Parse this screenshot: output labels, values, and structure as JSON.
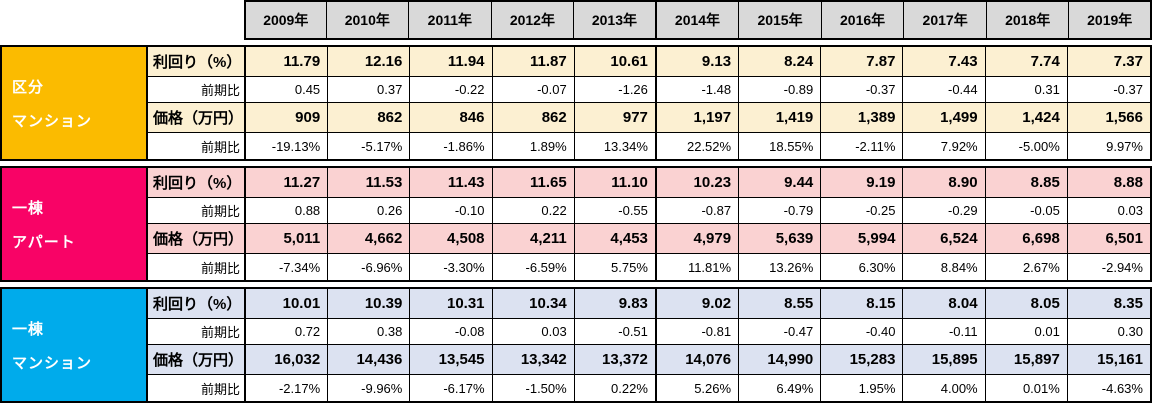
{
  "table": {
    "years": [
      "2009年",
      "2010年",
      "2011年",
      "2012年",
      "2013年",
      "2014年",
      "2015年",
      "2016年",
      "2017年",
      "2018年",
      "2019年"
    ],
    "header_bg": "#d9d9d9",
    "sections": [
      {
        "id": "kubun-mansion",
        "name": "区分マンション",
        "label_lines": [
          "区分",
          "マンション"
        ],
        "color": "#fbbb00",
        "light_color": "#fcf0d2",
        "rows": [
          {
            "key": "yield",
            "label": "利回り（%）",
            "type": "highlight",
            "values": [
              "11.79",
              "12.16",
              "11.94",
              "11.87",
              "10.61",
              "9.13",
              "8.24",
              "7.87",
              "7.43",
              "7.74",
              "7.37"
            ]
          },
          {
            "key": "yield-yoy",
            "label": "前期比",
            "type": "plain",
            "values": [
              "0.45",
              "0.37",
              "-0.22",
              "-0.07",
              "-1.26",
              "-1.48",
              "-0.89",
              "-0.37",
              "-0.44",
              "0.31",
              "-0.37"
            ]
          },
          {
            "key": "price",
            "label": "価格（万円）",
            "type": "highlight",
            "values": [
              "909",
              "862",
              "846",
              "862",
              "977",
              "1,197",
              "1,419",
              "1,389",
              "1,499",
              "1,424",
              "1,566"
            ]
          },
          {
            "key": "price-yoy",
            "label": "前期比",
            "type": "plain",
            "values": [
              "-19.13%",
              "-5.17%",
              "-1.86%",
              "1.89%",
              "13.34%",
              "22.52%",
              "18.55%",
              "-2.11%",
              "7.92%",
              "-5.00%",
              "9.97%"
            ]
          }
        ]
      },
      {
        "id": "itto-apartment",
        "name": "一棟アパート",
        "label_lines": [
          "一棟",
          "アパート"
        ],
        "color": "#f80366",
        "light_color": "#fad2d2",
        "rows": [
          {
            "key": "yield",
            "label": "利回り（%）",
            "type": "highlight",
            "values": [
              "11.27",
              "11.53",
              "11.43",
              "11.65",
              "11.10",
              "10.23",
              "9.44",
              "9.19",
              "8.90",
              "8.85",
              "8.88"
            ]
          },
          {
            "key": "yield-yoy",
            "label": "前期比",
            "type": "plain",
            "values": [
              "0.88",
              "0.26",
              "-0.10",
              "0.22",
              "-0.55",
              "-0.87",
              "-0.79",
              "-0.25",
              "-0.29",
              "-0.05",
              "0.03"
            ]
          },
          {
            "key": "price",
            "label": "価格（万円）",
            "type": "highlight",
            "values": [
              "5,011",
              "4,662",
              "4,508",
              "4,211",
              "4,453",
              "4,979",
              "5,639",
              "5,994",
              "6,524",
              "6,698",
              "6,501"
            ]
          },
          {
            "key": "price-yoy",
            "label": "前期比",
            "type": "plain",
            "values": [
              "-7.34%",
              "-6.96%",
              "-3.30%",
              "-6.59%",
              "5.75%",
              "11.81%",
              "13.26%",
              "6.30%",
              "8.84%",
              "2.67%",
              "-2.94%"
            ]
          }
        ]
      },
      {
        "id": "itto-mansion",
        "name": "一棟マンション",
        "label_lines": [
          "一棟",
          "マンション"
        ],
        "color": "#00abeb",
        "light_color": "#dce2f1",
        "rows": [
          {
            "key": "yield",
            "label": "利回り（%）",
            "type": "highlight",
            "values": [
              "10.01",
              "10.39",
              "10.31",
              "10.34",
              "9.83",
              "9.02",
              "8.55",
              "8.15",
              "8.04",
              "8.05",
              "8.35"
            ]
          },
          {
            "key": "yield-yoy",
            "label": "前期比",
            "type": "plain",
            "values": [
              "0.72",
              "0.38",
              "-0.08",
              "0.03",
              "-0.51",
              "-0.81",
              "-0.47",
              "-0.40",
              "-0.11",
              "0.01",
              "0.30"
            ]
          },
          {
            "key": "price",
            "label": "価格（万円）",
            "type": "highlight",
            "values": [
              "16,032",
              "14,436",
              "13,545",
              "13,342",
              "13,372",
              "14,076",
              "14,990",
              "15,283",
              "15,895",
              "15,897",
              "15,161"
            ]
          },
          {
            "key": "price-yoy",
            "label": "前期比",
            "type": "plain",
            "values": [
              "-2.17%",
              "-9.96%",
              "-6.17%",
              "-1.50%",
              "0.22%",
              "5.26%",
              "6.49%",
              "1.95%",
              "4.00%",
              "0.01%",
              "-4.63%"
            ]
          }
        ]
      }
    ]
  },
  "chart_data": {
    "type": "table",
    "categories": [
      "2009",
      "2010",
      "2011",
      "2012",
      "2013",
      "2014",
      "2015",
      "2016",
      "2017",
      "2018",
      "2019"
    ],
    "series": [
      {
        "name": "区分マンション 利回り（%）",
        "unit": "%",
        "values": [
          11.79,
          12.16,
          11.94,
          11.87,
          10.61,
          9.13,
          8.24,
          7.87,
          7.43,
          7.74,
          7.37
        ]
      },
      {
        "name": "区分マンション 利回り 前期比",
        "unit": "pt",
        "values": [
          0.45,
          0.37,
          -0.22,
          -0.07,
          -1.26,
          -1.48,
          -0.89,
          -0.37,
          -0.44,
          0.31,
          -0.37
        ]
      },
      {
        "name": "区分マンション 価格（万円）",
        "unit": "万円",
        "values": [
          909,
          862,
          846,
          862,
          977,
          1197,
          1419,
          1389,
          1499,
          1424,
          1566
        ]
      },
      {
        "name": "区分マンション 価格 前期比",
        "unit": "%",
        "values": [
          -19.13,
          -5.17,
          -1.86,
          1.89,
          13.34,
          22.52,
          18.55,
          -2.11,
          7.92,
          -5.0,
          9.97
        ]
      },
      {
        "name": "一棟アパート 利回り（%）",
        "unit": "%",
        "values": [
          11.27,
          11.53,
          11.43,
          11.65,
          11.1,
          10.23,
          9.44,
          9.19,
          8.9,
          8.85,
          8.88
        ]
      },
      {
        "name": "一棟アパート 利回り 前期比",
        "unit": "pt",
        "values": [
          0.88,
          0.26,
          -0.1,
          0.22,
          -0.55,
          -0.87,
          -0.79,
          -0.25,
          -0.29,
          -0.05,
          0.03
        ]
      },
      {
        "name": "一棟アパート 価格（万円）",
        "unit": "万円",
        "values": [
          5011,
          4662,
          4508,
          4211,
          4453,
          4979,
          5639,
          5994,
          6524,
          6698,
          6501
        ]
      },
      {
        "name": "一棟アパート 価格 前期比",
        "unit": "%",
        "values": [
          -7.34,
          -6.96,
          -3.3,
          -6.59,
          5.75,
          11.81,
          13.26,
          6.3,
          8.84,
          2.67,
          -2.94
        ]
      },
      {
        "name": "一棟マンション 利回り（%）",
        "unit": "%",
        "values": [
          10.01,
          10.39,
          10.31,
          10.34,
          9.83,
          9.02,
          8.55,
          8.15,
          8.04,
          8.05,
          8.35
        ]
      },
      {
        "name": "一棟マンション 利回り 前期比",
        "unit": "pt",
        "values": [
          0.72,
          0.38,
          -0.08,
          0.03,
          -0.51,
          -0.81,
          -0.47,
          -0.4,
          -0.11,
          0.01,
          0.3
        ]
      },
      {
        "name": "一棟マンション 価格（万円）",
        "unit": "万円",
        "values": [
          16032,
          14436,
          13545,
          13342,
          13372,
          14076,
          14990,
          15283,
          15895,
          15897,
          15161
        ]
      },
      {
        "name": "一棟マンション 価格 前期比",
        "unit": "%",
        "values": [
          -2.17,
          -9.96,
          -6.17,
          -1.5,
          0.22,
          5.26,
          6.49,
          1.95,
          4.0,
          0.01,
          -4.63
        ]
      }
    ]
  }
}
